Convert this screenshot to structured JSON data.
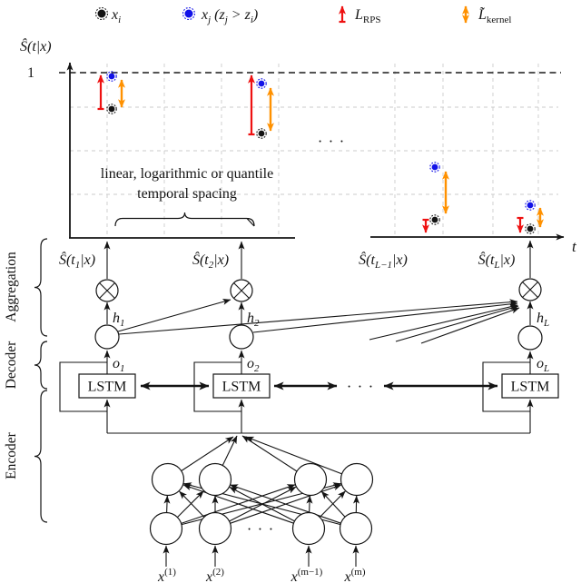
{
  "colors": {
    "red": "#ee1111",
    "orange": "#ff9100",
    "blue": "#1212e8",
    "grid": "#cbcbcb",
    "ink": "#141414"
  },
  "legend": {
    "xi": [
      [
        "n",
        "x"
      ],
      [
        "s",
        "i"
      ]
    ],
    "xj": [
      [
        "n",
        "x"
      ],
      [
        "s",
        "j"
      ],
      [
        "n",
        " (z"
      ],
      [
        "s",
        "j"
      ],
      [
        "n",
        " > z"
      ],
      [
        "s",
        "i"
      ],
      [
        "n",
        ")"
      ]
    ],
    "lrps": [
      [
        "n",
        "L"
      ],
      [
        "r",
        "RPS"
      ]
    ],
    "lkernel": [
      [
        "n",
        "L̃"
      ],
      [
        "r",
        "kernel"
      ]
    ]
  },
  "plot": {
    "ylabel": [
      [
        "n",
        "Ŝ(t|x)"
      ]
    ],
    "tick_one": "1",
    "xlabel": [
      [
        "n",
        "t"
      ]
    ],
    "note_line1": "linear, logarithmic or quantile",
    "note_line2": "temporal spacing",
    "ellipsis": "· · ·"
  },
  "aggregation": {
    "s_t1": [
      [
        "n",
        "Ŝ(t"
      ],
      [
        "s",
        "1"
      ],
      [
        "n",
        "|x)"
      ]
    ],
    "s_t2": [
      [
        "n",
        "Ŝ(t"
      ],
      [
        "s",
        "2"
      ],
      [
        "n",
        "|x)"
      ]
    ],
    "s_tL1": [
      [
        "n",
        "Ŝ(t"
      ],
      [
        "s",
        "L−1"
      ],
      [
        "n",
        "|x)"
      ]
    ],
    "s_tL": [
      [
        "n",
        "Ŝ(t"
      ],
      [
        "s",
        "L"
      ],
      [
        "n",
        "|x)"
      ]
    ],
    "h1": [
      [
        "n",
        "h"
      ],
      [
        "s",
        "1"
      ]
    ],
    "h2": [
      [
        "n",
        "h"
      ],
      [
        "s",
        "2"
      ]
    ],
    "hL": [
      [
        "n",
        "h"
      ],
      [
        "s",
        "L"
      ]
    ]
  },
  "decoder": {
    "lstm_label": "LSTM",
    "o1": [
      [
        "n",
        "o"
      ],
      [
        "s",
        "1"
      ]
    ],
    "o2": [
      [
        "n",
        "o"
      ],
      [
        "s",
        "2"
      ]
    ],
    "oL": [
      [
        "n",
        "o"
      ],
      [
        "s",
        "L"
      ]
    ],
    "ellipsis": "· · ·"
  },
  "encoder": {
    "ellipsis": "· · ·",
    "x1": [
      [
        "n",
        "x"
      ],
      [
        "p",
        "(1)"
      ]
    ],
    "x2": [
      [
        "n",
        "x"
      ],
      [
        "p",
        "(2)"
      ]
    ],
    "xm1": [
      [
        "n",
        "x"
      ],
      [
        "p",
        "(m−1)"
      ]
    ],
    "xm": [
      [
        "n",
        "x"
      ],
      [
        "p",
        "(m)"
      ]
    ]
  },
  "sidebar": {
    "aggregation": "Aggregation",
    "decoder": "Decoder",
    "encoder": "Encoder"
  }
}
